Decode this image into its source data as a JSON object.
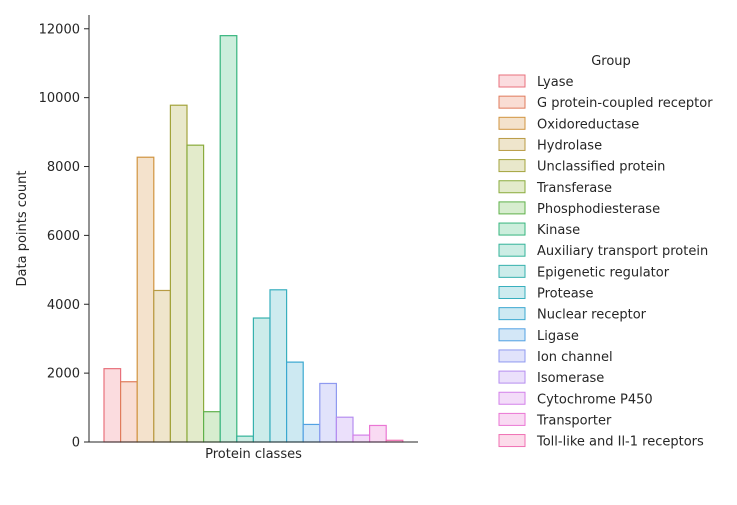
{
  "chart_data": {
    "type": "bar",
    "title": "",
    "xlabel": "Protein classes",
    "ylabel": "Data points count",
    "ylim": [
      0,
      12400
    ],
    "yticks": [
      0,
      2000,
      4000,
      6000,
      8000,
      10000,
      12000
    ],
    "grid": false,
    "legend_title": "Group",
    "legend_position": "right",
    "series": [
      {
        "name": "Lyase",
        "value": 2130,
        "edge": "#e8717c",
        "fill": "#fbdcdf"
      },
      {
        "name": "G protein-coupled receptor",
        "value": 1750,
        "edge": "#e07b5c",
        "fill": "#f9ddd4"
      },
      {
        "name": "Oxidoreductase",
        "value": 8270,
        "edge": "#d09440",
        "fill": "#f4e2cc"
      },
      {
        "name": "Hydrolase",
        "value": 4400,
        "edge": "#b89b44",
        "fill": "#efe5cc"
      },
      {
        "name": "Unclassified protein",
        "value": 9780,
        "edge": "#a3a33c",
        "fill": "#e9e8cb"
      },
      {
        "name": "Transferase",
        "value": 8620,
        "edge": "#8aab3c",
        "fill": "#e3ebcb"
      },
      {
        "name": "Phosphodiesterase",
        "value": 880,
        "edge": "#5fb14a",
        "fill": "#d7edcf"
      },
      {
        "name": "Kinase",
        "value": 11800,
        "edge": "#36b57e",
        "fill": "#cceedc"
      },
      {
        "name": "Auxiliary transport protein",
        "value": 170,
        "edge": "#34b39a",
        "fill": "#ccede4"
      },
      {
        "name": "Epigenetic regulator",
        "value": 3600,
        "edge": "#35b1ad",
        "fill": "#ccecea"
      },
      {
        "name": "Protease",
        "value": 4420,
        "edge": "#38afbe",
        "fill": "#cdebef"
      },
      {
        "name": "Nuclear receptor",
        "value": 2320,
        "edge": "#3aa8d0",
        "fill": "#cde9f2"
      },
      {
        "name": "Ligase",
        "value": 510,
        "edge": "#52a1e3",
        "fill": "#d3e7f7"
      },
      {
        "name": "Ion channel",
        "value": 1700,
        "edge": "#8f9af0",
        "fill": "#e1e3fb"
      },
      {
        "name": "Isomerase",
        "value": 720,
        "edge": "#b68ef0",
        "fill": "#ebe0fb"
      },
      {
        "name": "Cytochrome P450",
        "value": 200,
        "edge": "#d381ea",
        "fill": "#f3dcf9"
      },
      {
        "name": "Transporter",
        "value": 480,
        "edge": "#ea76d4",
        "fill": "#f9daf3"
      },
      {
        "name": "Toll-like and Il-1 receptors",
        "value": 50,
        "edge": "#f070b3",
        "fill": "#fcdbea"
      }
    ]
  }
}
